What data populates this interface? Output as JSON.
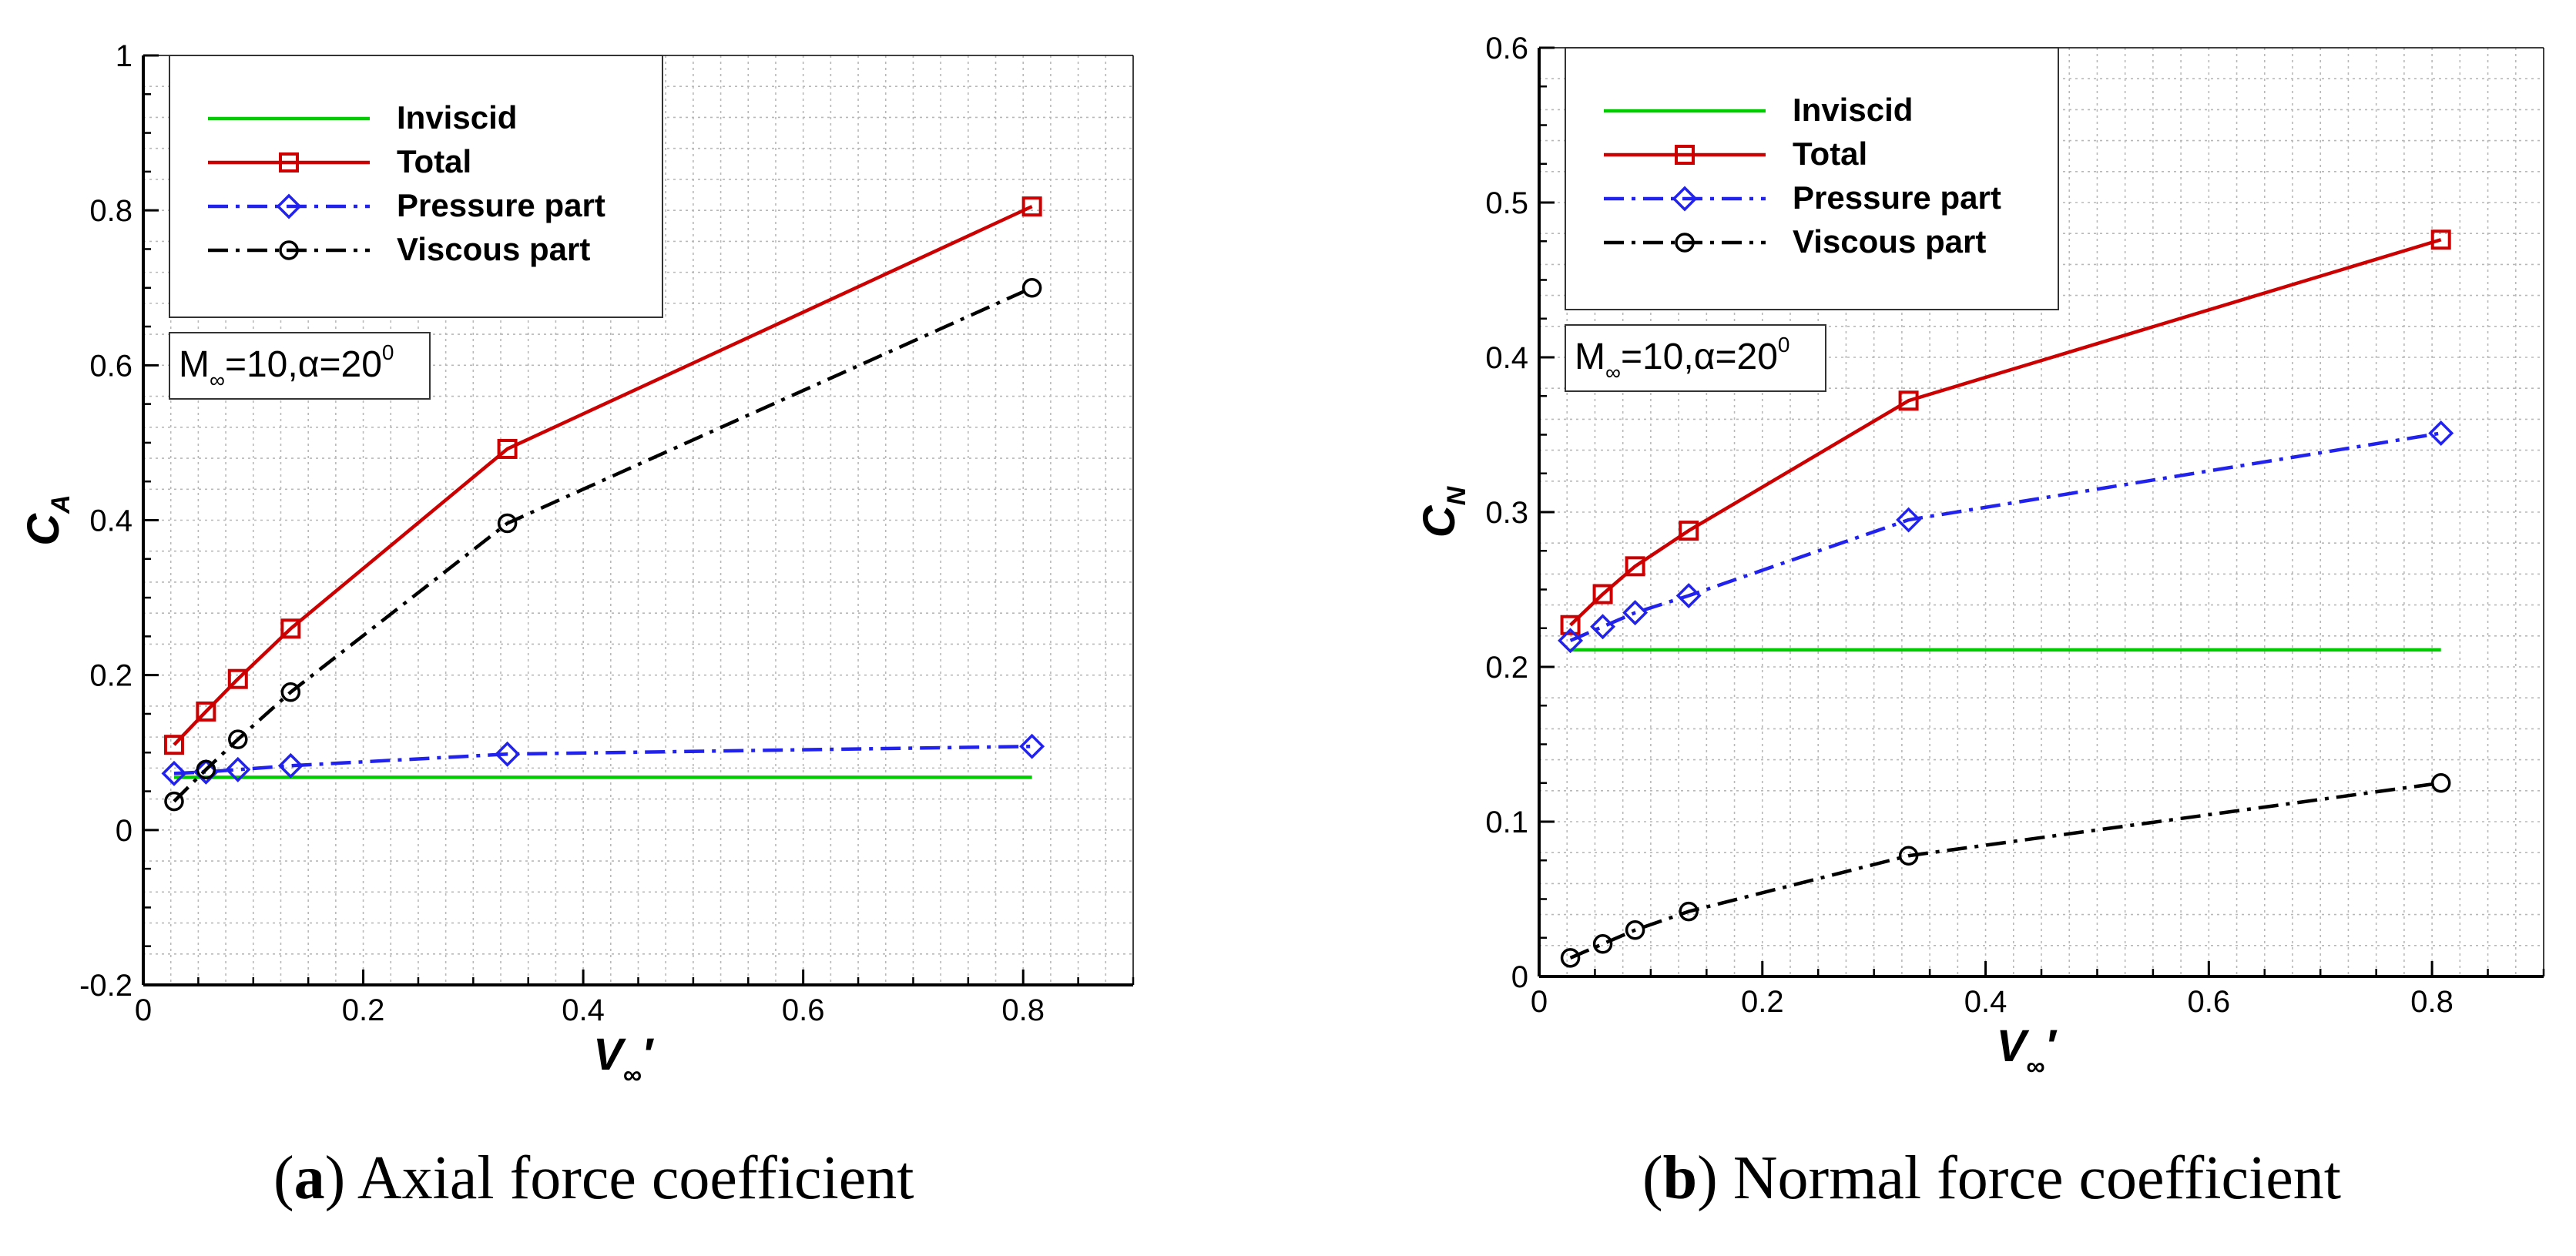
{
  "chart_data": [
    {
      "type": "line",
      "id": "a",
      "xlabel": "V",
      "xlabel_sub": "∞",
      "xlabel_prime": "′",
      "ylabel": "C",
      "ylabel_sub": "A",
      "xlim": [
        0,
        0.9
      ],
      "ylim": [
        -0.2,
        1.0
      ],
      "xticks": [
        0,
        0.2,
        0.4,
        0.6,
        0.8
      ],
      "xtick_labels": [
        "0",
        "0.2",
        "0.4",
        "0.6",
        "0.8"
      ],
      "yticks": [
        -0.2,
        0,
        0.2,
        0.4,
        0.6,
        0.8,
        1.0
      ],
      "ytick_labels": [
        "-0.2",
        "0",
        "0.2",
        "0.4",
        "0.6",
        "0.8",
        "1"
      ],
      "grid": true,
      "legend_position": "top-left",
      "annotation": {
        "pre": "M",
        "sub": "∞",
        "mid": "=10,α=20",
        "sup": "0"
      },
      "caption": {
        "letter": "a",
        "text": "Axial force coefficient"
      },
      "series": [
        {
          "name": "Inviscid",
          "color": "#00cc00",
          "style": "solid",
          "marker": "none",
          "x": [
            0.028,
            0.808
          ],
          "y": [
            0.068,
            0.068
          ]
        },
        {
          "name": "Total",
          "color": "#cc0000",
          "style": "solid",
          "marker": "square",
          "x": [
            0.028,
            0.057,
            0.086,
            0.134,
            0.331,
            0.808
          ],
          "y": [
            0.11,
            0.153,
            0.195,
            0.26,
            0.492,
            0.805
          ]
        },
        {
          "name": "Pressure part",
          "color": "#2222ee",
          "style": "dashdot",
          "marker": "diamond",
          "x": [
            0.028,
            0.057,
            0.086,
            0.134,
            0.331,
            0.808
          ],
          "y": [
            0.073,
            0.075,
            0.078,
            0.083,
            0.098,
            0.108
          ]
        },
        {
          "name": "Viscous part",
          "color": "#000000",
          "style": "dashdot",
          "marker": "circle",
          "x": [
            0.028,
            0.057,
            0.086,
            0.134,
            0.331,
            0.808
          ],
          "y": [
            0.037,
            0.078,
            0.117,
            0.178,
            0.396,
            0.7
          ]
        }
      ]
    },
    {
      "type": "line",
      "id": "b",
      "xlabel": "V",
      "xlabel_sub": "∞",
      "xlabel_prime": "′",
      "ylabel": "C",
      "ylabel_sub": "N",
      "xlim": [
        0,
        0.9
      ],
      "ylim": [
        0,
        0.6
      ],
      "xticks": [
        0,
        0.2,
        0.4,
        0.6,
        0.8
      ],
      "xtick_labels": [
        "0",
        "0.2",
        "0.4",
        "0.6",
        "0.8"
      ],
      "yticks": [
        0,
        0.1,
        0.2,
        0.3,
        0.4,
        0.5,
        0.6
      ],
      "ytick_labels": [
        "0",
        "0.1",
        "0.2",
        "0.3",
        "0.4",
        "0.5",
        "0.6"
      ],
      "grid": true,
      "legend_position": "top-left",
      "annotation": {
        "pre": "M",
        "sub": "∞",
        "mid": "=10,α=20",
        "sup": "0"
      },
      "caption": {
        "letter": "b",
        "text": "Normal force coefficient"
      },
      "series": [
        {
          "name": "Inviscid",
          "color": "#00cc00",
          "style": "solid",
          "marker": "none",
          "x": [
            0.028,
            0.808
          ],
          "y": [
            0.211,
            0.211
          ]
        },
        {
          "name": "Total",
          "color": "#cc0000",
          "style": "solid",
          "marker": "square",
          "x": [
            0.028,
            0.057,
            0.086,
            0.134,
            0.331,
            0.808
          ],
          "y": [
            0.227,
            0.247,
            0.265,
            0.288,
            0.372,
            0.476
          ]
        },
        {
          "name": "Pressure part",
          "color": "#2222ee",
          "style": "dashdot",
          "marker": "diamond",
          "x": [
            0.028,
            0.057,
            0.086,
            0.134,
            0.331,
            0.808
          ],
          "y": [
            0.217,
            0.226,
            0.235,
            0.246,
            0.295,
            0.351
          ]
        },
        {
          "name": "Viscous part",
          "color": "#000000",
          "style": "dashdot",
          "marker": "circle",
          "x": [
            0.028,
            0.057,
            0.086,
            0.134,
            0.331,
            0.808
          ],
          "y": [
            0.012,
            0.021,
            0.03,
            0.042,
            0.078,
            0.125
          ]
        }
      ]
    }
  ]
}
